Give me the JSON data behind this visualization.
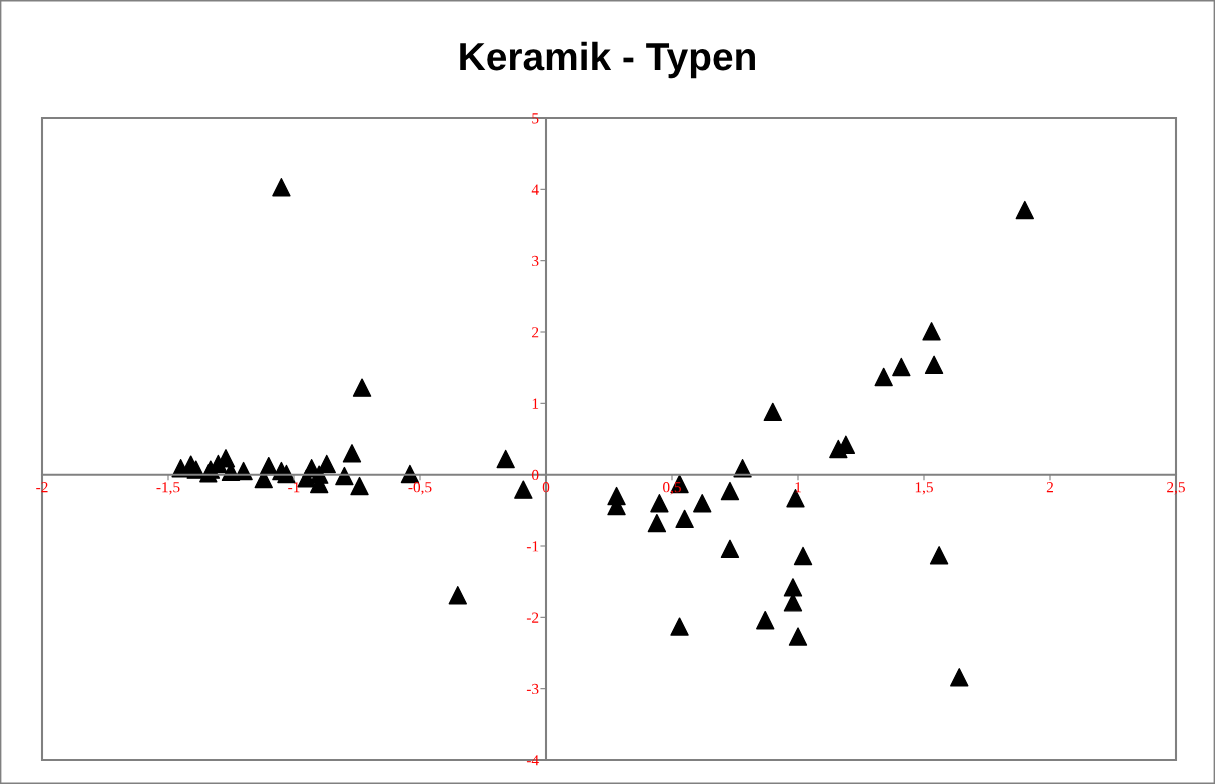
{
  "chart_data": {
    "type": "scatter",
    "title": "Keramik - Typen",
    "marker": "triangle",
    "grid": false,
    "legend": false,
    "xlim": [
      -2,
      2.5
    ],
    "ylim": [
      -4,
      5
    ],
    "xticks": [
      {
        "value": -2,
        "label": "-2"
      },
      {
        "value": -1.5,
        "label": "-1,5"
      },
      {
        "value": -1,
        "label": "-1"
      },
      {
        "value": -0.5,
        "label": "-0,5"
      },
      {
        "value": 0,
        "label": "0"
      },
      {
        "value": 0.5,
        "label": "0,5"
      },
      {
        "value": 1,
        "label": "1"
      },
      {
        "value": 1.5,
        "label": "1,5"
      },
      {
        "value": 2,
        "label": "2"
      },
      {
        "value": 2.5,
        "label": "2,5"
      }
    ],
    "yticks": [
      {
        "value": -4,
        "label": "-4"
      },
      {
        "value": -3,
        "label": "-3"
      },
      {
        "value": -2,
        "label": "-2"
      },
      {
        "value": -1,
        "label": "-1"
      },
      {
        "value": 0,
        "label": "0"
      },
      {
        "value": 1,
        "label": "1"
      },
      {
        "value": 2,
        "label": "2"
      },
      {
        "value": 3,
        "label": "3"
      },
      {
        "value": 4,
        "label": "4"
      },
      {
        "value": 5,
        "label": "5"
      }
    ],
    "series": [
      {
        "color": "#000000",
        "x": [
          -1.05,
          -0.73,
          -0.35,
          -0.16,
          -0.09,
          -0.54,
          -0.74,
          -0.77,
          -0.8,
          -0.87,
          -0.9,
          -0.9,
          -0.93,
          -0.95,
          -1.03,
          -1.05,
          -1.1,
          -1.12,
          -1.2,
          -1.25,
          -1.27,
          -1.3,
          -1.33,
          -1.34,
          -1.39,
          -1.41,
          -1.45,
          0.28,
          0.28,
          0.45,
          0.44,
          0.53,
          0.55,
          0.62,
          0.73,
          0.73,
          0.78,
          0.9,
          0.87,
          0.53,
          0.99,
          1.02,
          0.98,
          0.98,
          1.0,
          1.16,
          1.19,
          1.34,
          1.41,
          1.53,
          1.54,
          1.56,
          1.64,
          1.9
        ],
        "values": [
          4.03,
          1.22,
          -1.69,
          0.22,
          -0.21,
          0.01,
          -0.16,
          0.3,
          -0.02,
          0.15,
          -0.13,
          0.0,
          0.09,
          -0.05,
          0.01,
          0.05,
          0.12,
          -0.06,
          0.05,
          0.04,
          0.23,
          0.15,
          0.07,
          0.02,
          0.07,
          0.14,
          0.09,
          -0.3,
          -0.44,
          -0.4,
          -0.68,
          -0.13,
          -0.62,
          -0.4,
          -0.23,
          -1.04,
          0.09,
          0.88,
          -2.04,
          -2.13,
          -0.33,
          -1.14,
          -1.58,
          -1.79,
          -2.27,
          0.36,
          0.42,
          1.37,
          1.51,
          2.01,
          1.54,
          -1.13,
          -2.84,
          3.71
        ]
      }
    ]
  }
}
